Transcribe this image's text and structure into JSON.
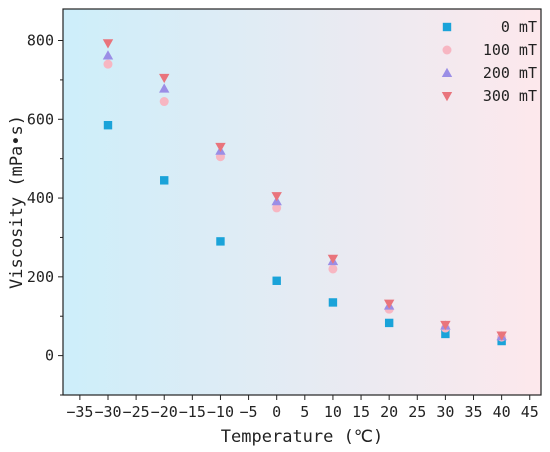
{
  "chart_data": {
    "type": "scatter",
    "title": "",
    "xlabel": "Temperature (℃)",
    "ylabel": "Viscosity (mPa•s)",
    "xlim": [
      -38,
      47
    ],
    "ylim": [
      -100,
      880
    ],
    "xticks": [
      -35,
      -30,
      -25,
      -20,
      -15,
      -10,
      -5,
      0,
      5,
      10,
      15,
      20,
      25,
      30,
      35,
      40,
      45
    ],
    "yticks": [
      0,
      200,
      400,
      600,
      800
    ],
    "grid": false,
    "legend_position": "top-right",
    "background_gradient": [
      "#cdeefa",
      "#fde8ec"
    ],
    "series": [
      {
        "name": "0 mT",
        "marker": "square",
        "color": "#1aa3d9",
        "x": [
          -30,
          -20,
          -10,
          0,
          10,
          20,
          30,
          40
        ],
        "y": [
          585,
          445,
          290,
          190,
          135,
          83,
          55,
          37
        ]
      },
      {
        "name": "100 mT",
        "marker": "circle",
        "color": "#f7b6c2",
        "x": [
          -30,
          -20,
          -10,
          0,
          10,
          20,
          30,
          40
        ],
        "y": [
          740,
          645,
          505,
          375,
          220,
          118,
          70,
          47
        ]
      },
      {
        "name": "200 mT",
        "marker": "triangle-up",
        "color": "#9b8ee6",
        "x": [
          -30,
          -20,
          -10,
          0,
          10,
          20,
          30,
          40
        ],
        "y": [
          762,
          678,
          520,
          392,
          240,
          127,
          76,
          49
        ]
      },
      {
        "name": "300 mT",
        "marker": "triangle-down",
        "color": "#e9747c",
        "x": [
          -30,
          -20,
          -10,
          0,
          10,
          20,
          30,
          40
        ],
        "y": [
          793,
          705,
          530,
          405,
          246,
          132,
          78,
          51
        ]
      }
    ]
  }
}
